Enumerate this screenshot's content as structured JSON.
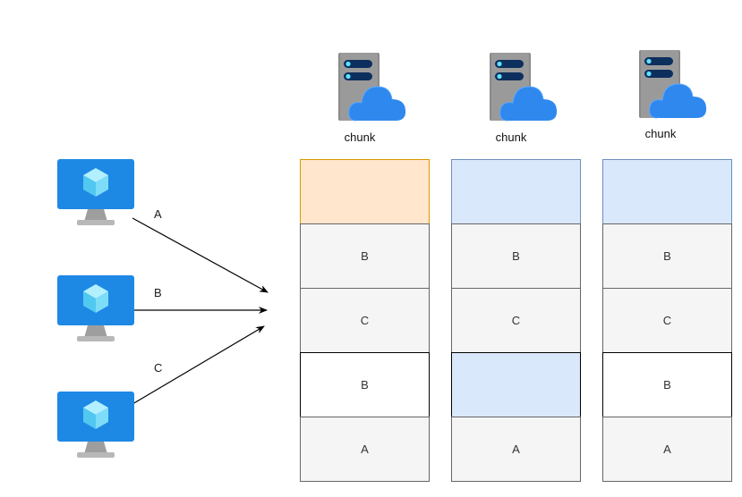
{
  "colors": {
    "cell_fill": "#f5f5f5",
    "cell_border": "#666666",
    "orange_fill": "#ffe6cc",
    "orange_border": "#d79b00",
    "blue_fill": "#dae8fc",
    "blue_border": "#6c8ebf",
    "black_border": "#000000",
    "monitor_blue": "#1e88e5",
    "cloud_blue": "#2f88ee",
    "server_grey": "#8a8a8a"
  },
  "clients": [
    {
      "icon": "virtual-machine-icon"
    },
    {
      "icon": "virtual-machine-icon"
    },
    {
      "icon": "virtual-machine-icon"
    }
  ],
  "arrows": [
    {
      "label": "A"
    },
    {
      "label": "B"
    },
    {
      "label": "C"
    }
  ],
  "columns": [
    {
      "header": "chunk",
      "icon": "server-cloud-icon",
      "cells": [
        {
          "text": "",
          "style": "orange"
        },
        {
          "text": "B",
          "style": "grey"
        },
        {
          "text": "C",
          "style": "grey"
        },
        {
          "text": "B",
          "style": "black"
        },
        {
          "text": "A",
          "style": "grey"
        }
      ]
    },
    {
      "header": "chunk",
      "icon": "server-cloud-icon",
      "cells": [
        {
          "text": "",
          "style": "blue"
        },
        {
          "text": "B",
          "style": "grey"
        },
        {
          "text": "C",
          "style": "grey"
        },
        {
          "text": "",
          "style": "hatched"
        },
        {
          "text": "A",
          "style": "grey"
        }
      ]
    },
    {
      "header": "chunk",
      "icon": "server-cloud-icon",
      "cells": [
        {
          "text": "",
          "style": "blue"
        },
        {
          "text": "B",
          "style": "grey"
        },
        {
          "text": "C",
          "style": "grey"
        },
        {
          "text": "B",
          "style": "black"
        },
        {
          "text": "A",
          "style": "grey"
        }
      ]
    }
  ]
}
